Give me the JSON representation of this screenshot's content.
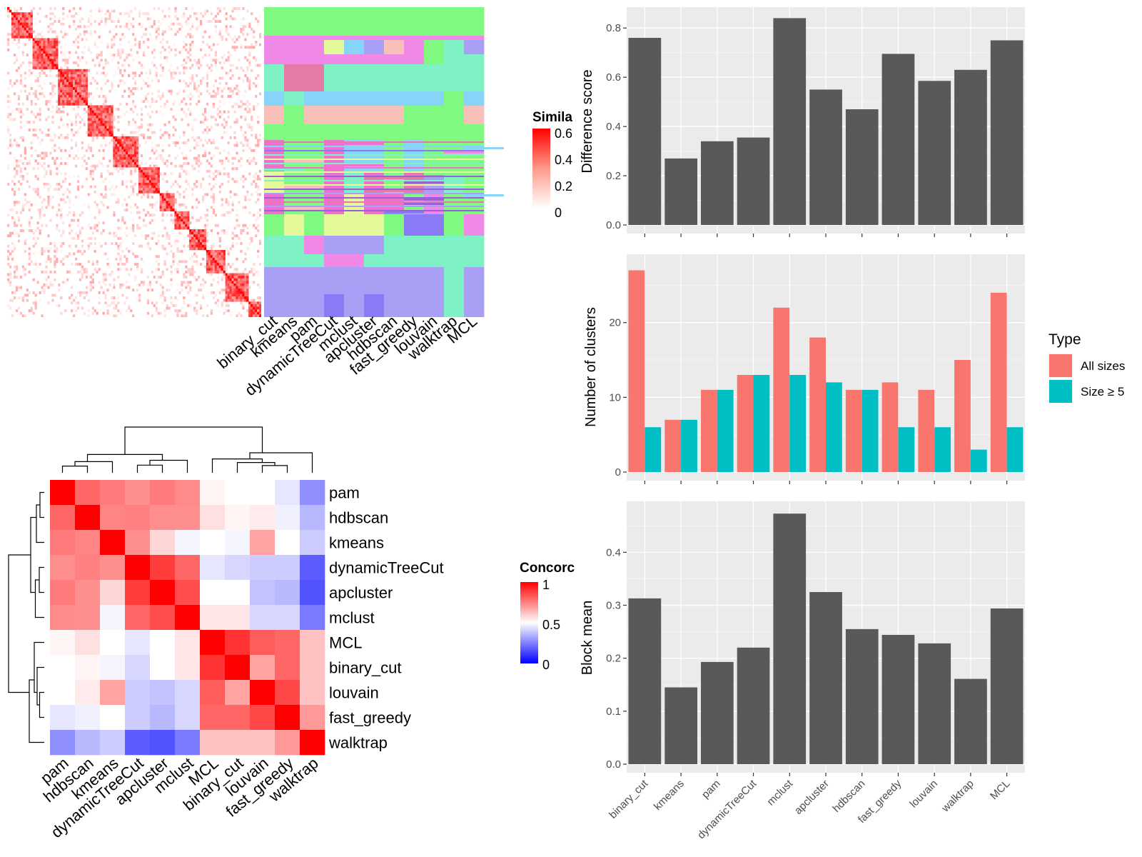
{
  "chart_data": [
    {
      "type": "heatmap",
      "id": "similarity",
      "legend": {
        "title": "Simila",
        "ticks": [
          "0.6",
          "0.4",
          "0.2",
          "0"
        ]
      },
      "blocks": [
        [
          0.02,
          0.1
        ],
        [
          0.1,
          0.2
        ],
        [
          0.2,
          0.32
        ],
        [
          0.32,
          0.42
        ],
        [
          0.42,
          0.52
        ],
        [
          0.52,
          0.6
        ],
        [
          0.6,
          0.66
        ],
        [
          0.66,
          0.72
        ],
        [
          0.72,
          0.78
        ],
        [
          0.78,
          0.86
        ],
        [
          0.86,
          0.95
        ],
        [
          0.95,
          1.0
        ]
      ]
    },
    {
      "type": "heatmap",
      "id": "cluster-assignments",
      "columns": [
        "binary_cut",
        "kmeans",
        "pam",
        "dynamicTreeCut",
        "mclust",
        "apcluster",
        "hdbscan",
        "fast_greedy",
        "louvain",
        "walktrap",
        "MCL"
      ]
    },
    {
      "type": "heatmap",
      "id": "concordance",
      "rows": [
        "pam",
        "hdbscan",
        "kmeans",
        "dynamicTreeCut",
        "apcluster",
        "mclust",
        "MCL",
        "binary_cut",
        "louvain",
        "fast_greedy",
        "walktrap"
      ],
      "columns": [
        "pam",
        "hdbscan",
        "kmeans",
        "dynamicTreeCut",
        "apcluster",
        "mclust",
        "MCL",
        "binary_cut",
        "louvain",
        "fast_greedy",
        "walktrap"
      ],
      "values": [
        [
          1.0,
          0.8,
          0.76,
          0.72,
          0.76,
          0.73,
          0.52,
          0.5,
          0.5,
          0.45,
          0.28
        ],
        [
          0.8,
          1.0,
          0.74,
          0.75,
          0.72,
          0.72,
          0.56,
          0.52,
          0.54,
          0.47,
          0.36
        ],
        [
          0.76,
          0.74,
          1.0,
          0.72,
          0.58,
          0.48,
          0.5,
          0.48,
          0.68,
          0.5,
          0.4
        ],
        [
          0.72,
          0.75,
          0.72,
          1.0,
          0.88,
          0.8,
          0.45,
          0.42,
          0.4,
          0.4,
          0.18
        ],
        [
          0.76,
          0.72,
          0.58,
          0.88,
          1.0,
          0.85,
          0.5,
          0.5,
          0.38,
          0.36,
          0.16
        ],
        [
          0.73,
          0.72,
          0.48,
          0.8,
          0.85,
          1.0,
          0.55,
          0.55,
          0.42,
          0.42,
          0.24
        ],
        [
          0.52,
          0.56,
          0.5,
          0.45,
          0.5,
          0.55,
          1.0,
          0.9,
          0.82,
          0.8,
          0.62
        ],
        [
          0.5,
          0.52,
          0.48,
          0.42,
          0.5,
          0.55,
          0.9,
          1.0,
          0.68,
          0.8,
          0.62
        ],
        [
          0.5,
          0.54,
          0.68,
          0.4,
          0.38,
          0.42,
          0.82,
          0.68,
          1.0,
          0.86,
          0.62
        ],
        [
          0.45,
          0.47,
          0.5,
          0.4,
          0.36,
          0.42,
          0.8,
          0.8,
          0.86,
          1.0,
          0.7
        ],
        [
          0.28,
          0.36,
          0.4,
          0.18,
          0.16,
          0.24,
          0.62,
          0.62,
          0.62,
          0.7,
          1.0
        ]
      ],
      "legend": {
        "title": "Concorc",
        "ticks": [
          "1",
          "0.5",
          "0"
        ]
      }
    },
    {
      "type": "bar",
      "id": "difference-score",
      "categories": [
        "binary_cut",
        "kmeans",
        "pam",
        "dynamicTreeCut",
        "mclust",
        "apcluster",
        "hdbscan",
        "fast_greedy",
        "louvain",
        "walktrap",
        "MCL"
      ],
      "values": [
        0.76,
        0.27,
        0.34,
        0.355,
        0.84,
        0.55,
        0.47,
        0.695,
        0.585,
        0.63,
        0.75
      ],
      "ylabel": "Difference score",
      "ylim": [
        0,
        0.85
      ],
      "yticks": [
        "0.0",
        "0.2",
        "0.4",
        "0.6",
        "0.8"
      ]
    },
    {
      "type": "bar",
      "id": "number-of-clusters",
      "categories": [
        "binary_cut",
        "kmeans",
        "pam",
        "dynamicTreeCut",
        "mclust",
        "apcluster",
        "hdbscan",
        "fast_greedy",
        "louvain",
        "walktrap",
        "MCL"
      ],
      "series": [
        {
          "name": "All sizes",
          "values": [
            27,
            7,
            11,
            13,
            22,
            18,
            11,
            12,
            11,
            15,
            24
          ]
        },
        {
          "name": "Size ≥ 5",
          "values": [
            6,
            7,
            11,
            13,
            13,
            12,
            11,
            6,
            6,
            3,
            6
          ]
        }
      ],
      "ylabel": "Number of clusters",
      "ylim": [
        0,
        28
      ],
      "yticks": [
        "0",
        "10",
        "20"
      ],
      "legend": {
        "title": "Type"
      }
    },
    {
      "type": "bar",
      "id": "block-mean",
      "categories": [
        "binary_cut",
        "kmeans",
        "pam",
        "dynamicTreeCut",
        "mclust",
        "apcluster",
        "hdbscan",
        "fast_greedy",
        "louvain",
        "walktrap",
        "MCL"
      ],
      "values": [
        0.313,
        0.145,
        0.193,
        0.22,
        0.473,
        0.325,
        0.255,
        0.244,
        0.228,
        0.161,
        0.294
      ],
      "ylabel": "Block mean",
      "ylim": [
        0,
        0.48
      ],
      "yticks": [
        "0.0",
        "0.1",
        "0.2",
        "0.3",
        "0.4"
      ]
    }
  ],
  "colors": {
    "bar_dark": "#595959",
    "panel_bg": "#ebebeb",
    "all_sizes": "#f8766d",
    "size_ge5": "#00bfc4",
    "heat_red": "#ff0000",
    "heat_blue": "#0000ff"
  }
}
